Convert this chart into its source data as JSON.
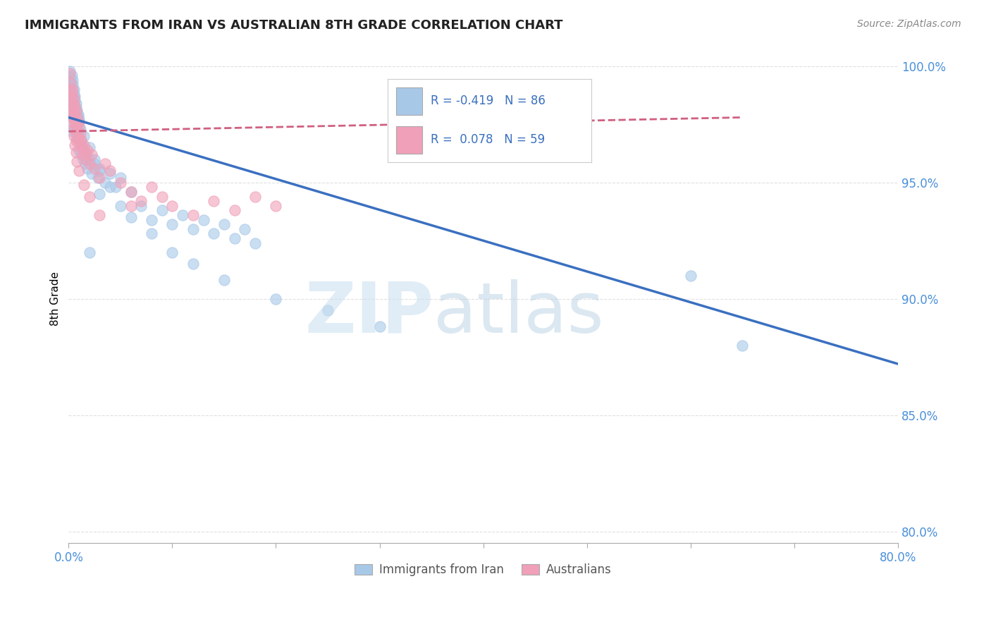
{
  "title": "IMMIGRANTS FROM IRAN VS AUSTRALIAN 8TH GRADE CORRELATION CHART",
  "source_text": "Source: ZipAtlas.com",
  "ylabel": "8th Grade",
  "xlim": [
    0.0,
    0.8
  ],
  "ylim": [
    0.795,
    1.005
  ],
  "ytick_positions": [
    0.8,
    0.85,
    0.9,
    0.95,
    1.0
  ],
  "yticklabels": [
    "80.0%",
    "85.0%",
    "90.0%",
    "95.0%",
    "100.0%"
  ],
  "blue_R": -0.419,
  "blue_N": 86,
  "pink_R": 0.078,
  "pink_N": 59,
  "blue_color": "#a8c8e8",
  "pink_color": "#f0a0b8",
  "blue_line_color": "#3a70c0",
  "pink_line_color": "#d06080",
  "legend_label_blue": "Immigrants from Iran",
  "legend_label_pink": "Australians",
  "blue_trendline_x": [
    0.0,
    0.8
  ],
  "blue_trendline_y": [
    0.978,
    0.872
  ],
  "pink_trendline_x": [
    0.0,
    0.65
  ],
  "pink_trendline_y": [
    0.972,
    0.978
  ],
  "background_color": "#ffffff",
  "grid_color": "#e0e0e0",
  "title_color": "#222222",
  "tick_color": "#4a90d9",
  "ylabel_color": "#000000",
  "blue_scatter_x": [
    0.001,
    0.001,
    0.002,
    0.002,
    0.002,
    0.003,
    0.003,
    0.003,
    0.003,
    0.004,
    0.004,
    0.004,
    0.005,
    0.005,
    0.005,
    0.006,
    0.006,
    0.006,
    0.007,
    0.007,
    0.007,
    0.008,
    0.008,
    0.008,
    0.009,
    0.009,
    0.01,
    0.01,
    0.01,
    0.011,
    0.012,
    0.012,
    0.013,
    0.014,
    0.015,
    0.016,
    0.017,
    0.018,
    0.02,
    0.022,
    0.025,
    0.028,
    0.03,
    0.035,
    0.04,
    0.045,
    0.05,
    0.06,
    0.07,
    0.08,
    0.09,
    0.1,
    0.11,
    0.12,
    0.13,
    0.14,
    0.15,
    0.16,
    0.17,
    0.18,
    0.003,
    0.004,
    0.005,
    0.006,
    0.007,
    0.008,
    0.009,
    0.01,
    0.015,
    0.02,
    0.025,
    0.03,
    0.04,
    0.05,
    0.06,
    0.08,
    0.1,
    0.12,
    0.15,
    0.2,
    0.25,
    0.3,
    0.02,
    0.03,
    0.6,
    0.65
  ],
  "blue_scatter_y": [
    0.998,
    0.992,
    0.995,
    0.988,
    0.983,
    0.99,
    0.984,
    0.978,
    0.972,
    0.992,
    0.985,
    0.978,
    0.988,
    0.982,
    0.975,
    0.985,
    0.98,
    0.974,
    0.982,
    0.977,
    0.971,
    0.98,
    0.975,
    0.969,
    0.978,
    0.972,
    0.976,
    0.97,
    0.964,
    0.973,
    0.968,
    0.962,
    0.966,
    0.96,
    0.964,
    0.958,
    0.962,
    0.956,
    0.96,
    0.954,
    0.958,
    0.952,
    0.956,
    0.95,
    0.954,
    0.948,
    0.952,
    0.946,
    0.94,
    0.934,
    0.938,
    0.932,
    0.936,
    0.93,
    0.934,
    0.928,
    0.932,
    0.926,
    0.93,
    0.924,
    0.996,
    0.994,
    0.99,
    0.987,
    0.984,
    0.981,
    0.979,
    0.977,
    0.97,
    0.965,
    0.96,
    0.955,
    0.948,
    0.94,
    0.935,
    0.928,
    0.92,
    0.915,
    0.908,
    0.9,
    0.895,
    0.888,
    0.92,
    0.945,
    0.91,
    0.88
  ],
  "pink_scatter_x": [
    0.001,
    0.001,
    0.002,
    0.002,
    0.002,
    0.003,
    0.003,
    0.003,
    0.004,
    0.004,
    0.004,
    0.005,
    0.005,
    0.005,
    0.006,
    0.006,
    0.007,
    0.007,
    0.007,
    0.008,
    0.008,
    0.009,
    0.009,
    0.01,
    0.01,
    0.011,
    0.012,
    0.013,
    0.014,
    0.015,
    0.016,
    0.017,
    0.018,
    0.02,
    0.022,
    0.025,
    0.03,
    0.035,
    0.04,
    0.05,
    0.06,
    0.07,
    0.08,
    0.09,
    0.1,
    0.12,
    0.14,
    0.16,
    0.18,
    0.2,
    0.005,
    0.006,
    0.007,
    0.008,
    0.01,
    0.015,
    0.02,
    0.03,
    0.06
  ],
  "pink_scatter_y": [
    0.997,
    0.99,
    0.993,
    0.986,
    0.98,
    0.988,
    0.982,
    0.976,
    0.99,
    0.984,
    0.978,
    0.986,
    0.98,
    0.973,
    0.983,
    0.977,
    0.981,
    0.975,
    0.968,
    0.978,
    0.972,
    0.976,
    0.969,
    0.974,
    0.967,
    0.971,
    0.968,
    0.965,
    0.962,
    0.966,
    0.963,
    0.96,
    0.964,
    0.958,
    0.962,
    0.956,
    0.952,
    0.958,
    0.955,
    0.95,
    0.946,
    0.942,
    0.948,
    0.944,
    0.94,
    0.936,
    0.942,
    0.938,
    0.944,
    0.94,
    0.97,
    0.966,
    0.963,
    0.959,
    0.955,
    0.949,
    0.944,
    0.936,
    0.94
  ]
}
